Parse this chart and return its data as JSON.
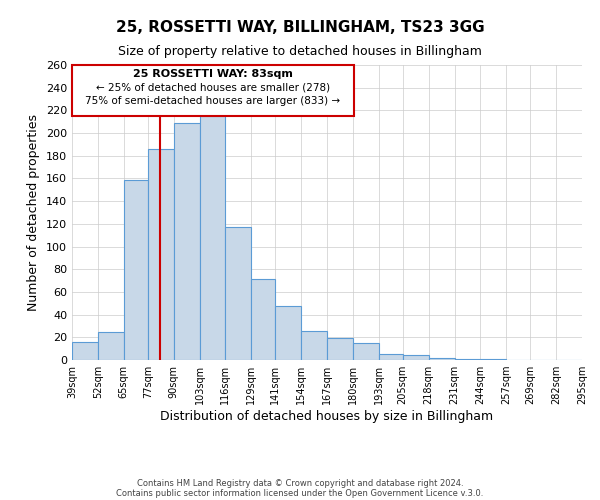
{
  "title": "25, ROSSETTI WAY, BILLINGHAM, TS23 3GG",
  "subtitle": "Size of property relative to detached houses in Billingham",
  "xlabel": "Distribution of detached houses by size in Billingham",
  "ylabel": "Number of detached properties",
  "bar_values": [
    16,
    25,
    159,
    186,
    209,
    215,
    117,
    71,
    48,
    26,
    19,
    15,
    5,
    4,
    2,
    1,
    1,
    0,
    0,
    0
  ],
  "bin_labels": [
    "39sqm",
    "52sqm",
    "65sqm",
    "77sqm",
    "90sqm",
    "103sqm",
    "116sqm",
    "129sqm",
    "141sqm",
    "154sqm",
    "167sqm",
    "180sqm",
    "193sqm",
    "205sqm",
    "218sqm",
    "231sqm",
    "244sqm",
    "257sqm",
    "269sqm",
    "282sqm",
    "295sqm"
  ],
  "bar_edges": [
    39,
    52,
    65,
    77,
    90,
    103,
    116,
    129,
    141,
    154,
    167,
    180,
    193,
    205,
    218,
    231,
    244,
    257,
    269,
    282,
    295
  ],
  "bar_color": "#c8d8e8",
  "bar_edge_color": "#5b9bd5",
  "vline_x": 83,
  "vline_color": "#cc0000",
  "ylim": [
    0,
    260
  ],
  "yticks": [
    0,
    20,
    40,
    60,
    80,
    100,
    120,
    140,
    160,
    180,
    200,
    220,
    240,
    260
  ],
  "annotation_title": "25 ROSSETTI WAY: 83sqm",
  "annotation_line1": "← 25% of detached houses are smaller (278)",
  "annotation_line2": "75% of semi-detached houses are larger (833) →",
  "footer1": "Contains HM Land Registry data © Crown copyright and database right 2024.",
  "footer2": "Contains public sector information licensed under the Open Government Licence v.3.0.",
  "background_color": "#ffffff",
  "grid_color": "#cccccc"
}
